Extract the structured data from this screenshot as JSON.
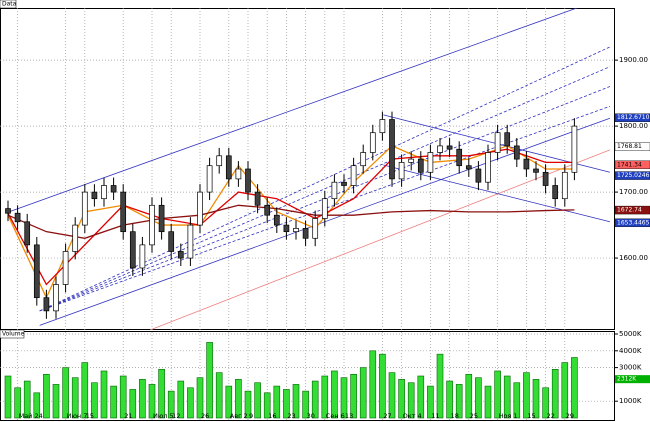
{
  "chart_data": [
    {
      "type": "candlestick",
      "title": "Data",
      "categories": [
        null,
        "Май 24",
        null,
        null,
        null,
        null,
        "Июн 7",
        null,
        "15",
        null,
        null,
        null,
        "21",
        null,
        null,
        "Июл 5",
        null,
        "12",
        null,
        null,
        "26",
        null,
        null,
        "Авг 2",
        null,
        "9",
        null,
        "16",
        null,
        "23",
        null,
        "30",
        null,
        "Сен 6",
        null,
        "13",
        null,
        null,
        null,
        "27",
        null,
        "Окт 4",
        null,
        null,
        "11",
        null,
        "18",
        null,
        "25",
        null,
        null,
        "Ноя 1",
        null,
        null,
        "15",
        null,
        "22",
        null,
        "29",
        null
      ],
      "open": [
        1675,
        1668,
        1655,
        1620,
        1540,
        1520,
        1560,
        1610,
        1650,
        1700,
        1690,
        1710,
        1700,
        1640,
        1585,
        1620,
        1680,
        1640,
        1610,
        1600,
        1650,
        1700,
        1740,
        1755,
        1720,
        1735,
        1700,
        1680,
        1665,
        1650,
        1640,
        1645,
        1630,
        1660,
        1690,
        1715,
        1710,
        1740,
        1760,
        1790,
        1810,
        1720,
        1745,
        1750,
        1730,
        1760,
        1770,
        1765,
        1740,
        1735,
        1715,
        1760,
        1790,
        1770,
        1750,
        1735,
        1730,
        1710,
        1690,
        1730
      ],
      "high": [
        1687,
        1680,
        1667,
        1632,
        1552,
        1572,
        1622,
        1662,
        1712,
        1712,
        1722,
        1722,
        1712,
        1652,
        1632,
        1692,
        1692,
        1652,
        1622,
        1662,
        1712,
        1752,
        1767,
        1767,
        1747,
        1747,
        1712,
        1692,
        1677,
        1662,
        1657,
        1657,
        1672,
        1702,
        1727,
        1727,
        1752,
        1772,
        1802,
        1822,
        1822,
        1757,
        1762,
        1762,
        1772,
        1782,
        1782,
        1777,
        1752,
        1747,
        1772,
        1802,
        1802,
        1782,
        1762,
        1747,
        1742,
        1722,
        1742,
        1812
      ],
      "low": [
        1656,
        1643,
        1608,
        1528,
        1508,
        1508,
        1548,
        1598,
        1638,
        1678,
        1678,
        1688,
        1628,
        1573,
        1573,
        1608,
        1628,
        1598,
        1588,
        1588,
        1638,
        1688,
        1728,
        1708,
        1708,
        1688,
        1668,
        1653,
        1638,
        1628,
        1628,
        1618,
        1618,
        1648,
        1678,
        1698,
        1698,
        1728,
        1748,
        1778,
        1708,
        1708,
        1733,
        1718,
        1718,
        1748,
        1753,
        1728,
        1723,
        1703,
        1703,
        1748,
        1758,
        1738,
        1723,
        1718,
        1698,
        1678,
        1678,
        1718
      ],
      "close": [
        1668,
        1655,
        1620,
        1540,
        1520,
        1560,
        1610,
        1650,
        1700,
        1690,
        1710,
        1700,
        1640,
        1585,
        1620,
        1680,
        1640,
        1610,
        1600,
        1650,
        1700,
        1740,
        1755,
        1720,
        1735,
        1700,
        1680,
        1665,
        1650,
        1640,
        1645,
        1630,
        1660,
        1690,
        1715,
        1710,
        1740,
        1760,
        1790,
        1810,
        1720,
        1745,
        1750,
        1730,
        1760,
        1770,
        1765,
        1740,
        1735,
        1715,
        1760,
        1790,
        1770,
        1750,
        1735,
        1730,
        1710,
        1690,
        1730,
        1800
      ],
      "up_color": "#ffffff",
      "down_color": "#404040",
      "series": [
        {
          "color": "#f08c00",
          "x": [
            0,
            4,
            8,
            12,
            16,
            20,
            24,
            28,
            32,
            36,
            40,
            44,
            48,
            52,
            56,
            59
          ],
          "values": [
            1665,
            1540,
            1670,
            1680,
            1650,
            1650,
            1740,
            1670,
            1645,
            1715,
            1770,
            1745,
            1750,
            1770,
            1735,
            1735
          ]
        },
        {
          "color": "#e00000",
          "x": [
            0,
            4,
            8,
            12,
            16,
            20,
            24,
            28,
            32,
            36,
            40,
            44,
            48,
            52,
            56,
            59
          ],
          "values": [
            1668,
            1560,
            1620,
            1680,
            1660,
            1650,
            1700,
            1690,
            1660,
            1690,
            1750,
            1755,
            1755,
            1765,
            1745,
            1745
          ]
        },
        {
          "color": "#8b1010",
          "x": [
            0,
            4,
            8,
            12,
            16,
            20,
            24,
            28,
            32,
            36,
            40,
            44,
            48,
            52,
            56,
            59
          ],
          "values": [
            1665,
            1640,
            1630,
            1650,
            1660,
            1665,
            1680,
            1675,
            1665,
            1665,
            1670,
            1672,
            1670,
            1670,
            1672,
            1673
          ]
        }
      ],
      "trendlines": [
        {
          "color": "#3030c0",
          "dash": false,
          "x": [
            -0.3,
            60.6
          ],
          "values": [
            1668,
            1986
          ]
        },
        {
          "color": "#3030c0",
          "dash": false,
          "x": [
            3.3,
            62.7
          ],
          "values": [
            1498,
            1812
          ]
        },
        {
          "color": "#f08080",
          "dash": false,
          "x": [
            14.8,
            62.7
          ],
          "values": [
            1491,
            1764
          ]
        },
        {
          "color": "#3030c0",
          "dash": false,
          "x": [
            39.1,
            62.7
          ],
          "values": [
            1817,
            1730
          ]
        },
        {
          "color": "#3030c0",
          "dash": false,
          "x": [
            39.1,
            62.7
          ],
          "values": [
            1741,
            1655
          ]
        },
        {
          "color": "#3030c0",
          "dash": true,
          "x": [
            3.3,
            62.7
          ],
          "values": [
            1520,
            1920
          ]
        },
        {
          "color": "#3030c0",
          "dash": true,
          "x": [
            3.3,
            62.7
          ],
          "values": [
            1520,
            1890
          ]
        },
        {
          "color": "#3030c0",
          "dash": true,
          "x": [
            3.3,
            62.7
          ],
          "values": [
            1520,
            1860
          ]
        },
        {
          "color": "#3030c0",
          "dash": true,
          "x": [
            3.3,
            62.7
          ],
          "values": [
            1520,
            1830
          ]
        }
      ],
      "markers": [
        {
          "value": 1812.671,
          "label": "1812.6710",
          "color": "#2040c0",
          "text_color": "#ffffff"
        },
        {
          "value": 1768.81,
          "label": "1768.81",
          "color": "#ffffff",
          "text_color": "#000000"
        },
        {
          "value": 1741.34,
          "label": "1741.34",
          "color": "#ff6060",
          "text_color": "#000000"
        },
        {
          "value": 1725.0246,
          "label": "1725.0246",
          "color": "#2040c0",
          "text_color": "#ffffff"
        },
        {
          "value": 1672.74,
          "label": "1672.74",
          "color": "#8b1010",
          "text_color": "#ffffff"
        },
        {
          "value": 1653.4465,
          "label": "1653.4465",
          "color": "#2040c0",
          "text_color": "#ffffff"
        }
      ],
      "ylim": [
        1491,
        1979
      ],
      "yticks": [
        {
          "value": 1600,
          "label": "1600.00"
        },
        {
          "value": 1700,
          "label": "1700.00"
        },
        {
          "value": 1800,
          "label": "1800.00"
        },
        {
          "value": 1900,
          "label": "1900.00"
        }
      ],
      "grid": true
    },
    {
      "type": "bar",
      "title": "Volume",
      "values": [
        2500,
        1800,
        2200,
        1500,
        2600,
        2000,
        3000,
        2400,
        3300,
        2100,
        2800,
        1900,
        2500,
        1700,
        2300,
        2000,
        2900,
        1600,
        2200,
        1800,
        2400,
        4500,
        2700,
        1900,
        2300,
        1600,
        2100,
        1500,
        1900,
        1700,
        2000,
        1600,
        2200,
        2500,
        2800,
        2400,
        2600,
        3000,
        4000,
        3800,
        2700,
        2300,
        2100,
        2500,
        1900,
        3800,
        2200,
        2000,
        2600,
        2400,
        1900,
        2800,
        2500,
        2100,
        2700,
        2300,
        1800,
        2900,
        3300,
        3600
      ],
      "color": "#33dd33",
      "edge_color": "#006600",
      "markers": [
        {
          "value": 2312,
          "label": "2312K",
          "color": "#00b000",
          "text_color": "#ffffff"
        }
      ],
      "ylim": [
        0,
        5000
      ],
      "yticks": [
        {
          "value": 1000,
          "label": "1000K"
        },
        {
          "value": 3000,
          "label": "3000K"
        },
        {
          "value": 4000,
          "label": "4000K"
        },
        {
          "value": 5000,
          "label": "5000K"
        }
      ],
      "grid": true
    }
  ]
}
